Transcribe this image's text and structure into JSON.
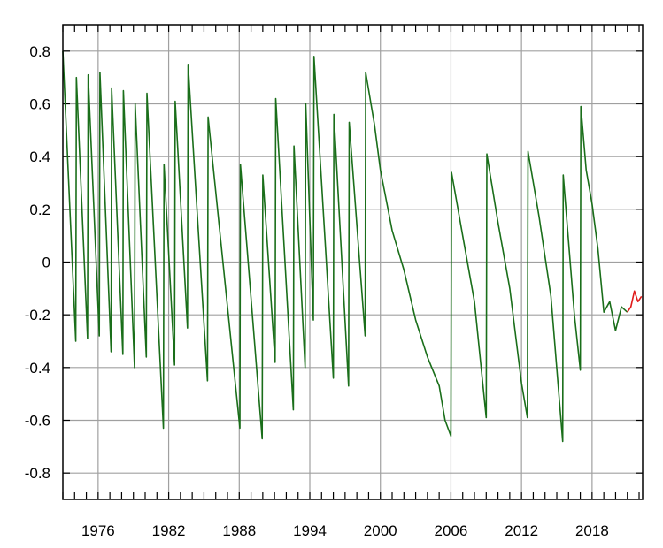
{
  "chart_data": {
    "type": "line",
    "title": "",
    "xlabel": "",
    "ylabel": "",
    "xlim": [
      1973,
      2022.3
    ],
    "ylim": [
      -0.9,
      0.9
    ],
    "grid": true,
    "legend": "none",
    "x_tick_labels": [
      "1976",
      "1982",
      "1988",
      "1994",
      "2000",
      "2006",
      "2012",
      "2018"
    ],
    "x_tick_values": [
      1976,
      1982,
      1988,
      1994,
      2000,
      2006,
      2012,
      2018
    ],
    "y_tick_labels": [
      "0.8",
      "0.6",
      "0.4",
      "0.2",
      "0",
      "-0.2",
      "-0.4",
      "-0.6",
      "-0.8"
    ],
    "y_tick_values": [
      0.8,
      0.6,
      0.4,
      0.2,
      0,
      -0.2,
      -0.4,
      -0.6,
      -0.8
    ],
    "colors": {
      "main": "#1a6e1a",
      "recent": "#e01a1a",
      "grid": "#a0a0a0",
      "frame": "#000000"
    },
    "series": [
      {
        "color": "#1a6e1a",
        "x": [
          1973.0,
          1974.1,
          1974.15,
          1975.1,
          1975.15,
          1976.1,
          1976.15,
          1977.1,
          1977.15,
          1978.1,
          1978.15,
          1979.1,
          1979.15,
          1980.1,
          1980.15,
          1981.55,
          1981.6,
          1982.5,
          1982.55,
          1983.6,
          1983.65,
          1985.3,
          1985.35,
          1988.05,
          1988.1,
          1989.95,
          1990.0,
          1991.05,
          1991.1,
          1992.6,
          1992.65,
          1993.6,
          1993.65,
          1994.3,
          1994.35,
          1996.0,
          1996.05,
          1997.3,
          1997.35,
          1998.7,
          1998.75,
          1999.5,
          2000.0,
          2001.0,
          2002.0,
          2003.0,
          2004.0,
          2005.0,
          2005.5,
          2006.0,
          2006.05,
          2007.0,
          2008.0,
          2009.0,
          2009.05,
          2010.0,
          2011.0,
          2012.0,
          2012.5,
          2012.55,
          2013.5,
          2014.5,
          2015.5,
          2015.55,
          2016.5,
          2017.0,
          2017.05,
          2017.5,
          2018.0,
          2018.5,
          2019.0,
          2019.5,
          2020.0,
          2020.5,
          2021.0
        ],
        "y": [
          0.8,
          -0.3,
          0.7,
          -0.29,
          0.71,
          -0.28,
          0.72,
          -0.34,
          0.66,
          -0.35,
          0.65,
          -0.4,
          0.6,
          -0.36,
          0.64,
          -0.63,
          0.37,
          -0.39,
          0.61,
          -0.25,
          0.75,
          -0.45,
          0.55,
          -0.63,
          0.37,
          -0.67,
          0.33,
          -0.38,
          0.62,
          -0.56,
          0.44,
          -0.4,
          0.6,
          -0.22,
          0.78,
          -0.44,
          0.56,
          -0.47,
          0.53,
          -0.28,
          0.72,
          0.52,
          0.35,
          0.12,
          -0.03,
          -0.22,
          -0.36,
          -0.47,
          -0.6,
          -0.66,
          0.34,
          0.1,
          -0.15,
          -0.59,
          0.41,
          0.15,
          -0.1,
          -0.46,
          -0.59,
          0.42,
          0.17,
          -0.13,
          -0.68,
          0.33,
          -0.2,
          -0.41,
          0.59,
          0.35,
          0.22,
          0.05,
          -0.19,
          -0.15,
          -0.26,
          -0.17,
          -0.19
        ]
      },
      {
        "color": "#e01a1a",
        "x": [
          2021.0,
          2021.3,
          2021.6,
          2021.9,
          2022.2
        ],
        "y": [
          -0.19,
          -0.17,
          -0.11,
          -0.15,
          -0.13
        ]
      }
    ]
  }
}
